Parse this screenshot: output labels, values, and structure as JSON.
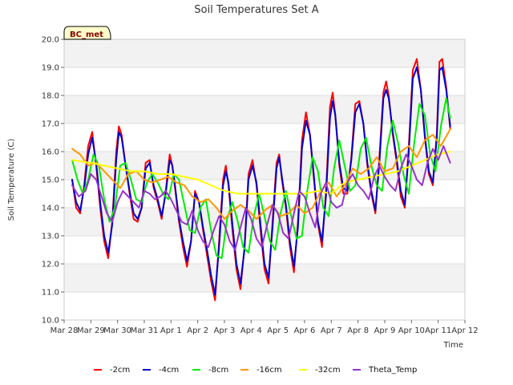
{
  "chart_data": {
    "type": "line",
    "title": "Soil Temperatures Set A",
    "xlabel": "Time",
    "ylabel": "Soil Temperature (C)",
    "badge": "BC_met",
    "ylim": [
      10.0,
      20.0
    ],
    "yticks": [
      "10.0",
      "11.0",
      "12.0",
      "13.0",
      "14.0",
      "15.0",
      "16.0",
      "17.0",
      "18.0",
      "19.0",
      "20.0"
    ],
    "xlim": [
      0,
      15
    ],
    "xticks": [
      "Mar 28",
      "Mar 29",
      "Mar 30",
      "Mar 31",
      "Apr 1",
      "Apr 2",
      "Apr 3",
      "Apr 4",
      "Apr 5",
      "Apr 6",
      "Apr 7",
      "Apr 8",
      "Apr 9",
      "Apr 10",
      "Apr 11",
      "Apr 12"
    ],
    "background_bands": true,
    "legend_position": "bottom",
    "series": [
      {
        "name": "-2cm",
        "color": "#ff0000",
        "x": [
          0.3,
          0.45,
          0.6,
          0.75,
          0.9,
          1.05,
          1.2,
          1.35,
          1.5,
          1.65,
          1.8,
          1.95,
          2.05,
          2.15,
          2.3,
          2.45,
          2.6,
          2.75,
          2.9,
          3.05,
          3.2,
          3.35,
          3.5,
          3.65,
          3.8,
          3.95,
          4.05,
          4.15,
          4.3,
          4.45,
          4.6,
          4.75,
          4.9,
          5.05,
          5.2,
          5.35,
          5.5,
          5.65,
          5.8,
          5.95,
          6.05,
          6.15,
          6.3,
          6.45,
          6.6,
          6.75,
          6.9,
          7.05,
          7.2,
          7.35,
          7.5,
          7.65,
          7.8,
          7.95,
          8.05,
          8.15,
          8.3,
          8.45,
          8.6,
          8.75,
          8.9,
          9.05,
          9.2,
          9.35,
          9.5,
          9.65,
          9.8,
          9.95,
          10.05,
          10.15,
          10.3,
          10.45,
          10.6,
          10.75,
          10.9,
          11.05,
          11.2,
          11.35,
          11.5,
          11.65,
          11.8,
          11.95,
          12.05,
          12.15,
          12.3,
          12.45,
          12.6,
          12.75,
          12.9,
          13.05,
          13.2,
          13.35,
          13.5,
          13.65,
          13.8,
          13.95,
          14.05,
          14.15,
          14.3,
          14.45
        ],
        "y": [
          15.0,
          14.0,
          13.8,
          14.8,
          16.2,
          16.7,
          15.5,
          14.0,
          12.8,
          12.2,
          13.5,
          16.0,
          16.9,
          16.6,
          15.5,
          14.5,
          13.6,
          13.5,
          14.0,
          15.6,
          15.7,
          14.7,
          14.2,
          13.6,
          14.6,
          15.9,
          15.5,
          14.7,
          13.5,
          12.6,
          11.9,
          12.8,
          14.6,
          14.2,
          13.2,
          12.3,
          11.4,
          10.7,
          12.8,
          15.0,
          15.5,
          14.8,
          13.2,
          11.8,
          11.1,
          12.6,
          15.2,
          15.7,
          14.8,
          13.2,
          11.8,
          11.3,
          13.5,
          15.6,
          15.9,
          15.0,
          14.0,
          12.6,
          11.7,
          13.5,
          16.4,
          17.4,
          16.6,
          15.0,
          13.4,
          12.6,
          14.6,
          17.6,
          18.1,
          17.3,
          15.5,
          14.5,
          14.5,
          15.8,
          17.7,
          17.8,
          17.0,
          15.5,
          14.5,
          13.8,
          15.8,
          18.1,
          18.5,
          18.0,
          16.6,
          15.6,
          14.4,
          14.0,
          16.2,
          18.9,
          19.3,
          18.2,
          16.5,
          15.2,
          14.8,
          16.7,
          19.2,
          19.3,
          18.3,
          16.8
        ]
      },
      {
        "name": "-4cm",
        "color": "#0000cc",
        "x": [
          0.3,
          0.45,
          0.6,
          0.75,
          0.9,
          1.05,
          1.2,
          1.35,
          1.5,
          1.65,
          1.8,
          1.95,
          2.05,
          2.15,
          2.3,
          2.45,
          2.6,
          2.75,
          2.9,
          3.05,
          3.2,
          3.35,
          3.5,
          3.65,
          3.8,
          3.95,
          4.05,
          4.15,
          4.3,
          4.45,
          4.6,
          4.75,
          4.9,
          5.05,
          5.2,
          5.35,
          5.5,
          5.65,
          5.8,
          5.95,
          6.05,
          6.15,
          6.3,
          6.45,
          6.6,
          6.75,
          6.9,
          7.05,
          7.2,
          7.35,
          7.5,
          7.65,
          7.8,
          7.95,
          8.05,
          8.15,
          8.3,
          8.45,
          8.6,
          8.75,
          8.9,
          9.05,
          9.2,
          9.35,
          9.5,
          9.65,
          9.8,
          9.95,
          10.05,
          10.15,
          10.3,
          10.45,
          10.6,
          10.75,
          10.9,
          11.05,
          11.2,
          11.35,
          11.5,
          11.65,
          11.8,
          11.95,
          12.05,
          12.15,
          12.3,
          12.45,
          12.6,
          12.75,
          12.9,
          13.05,
          13.2,
          13.35,
          13.5,
          13.65,
          13.8,
          13.95,
          14.05,
          14.15,
          14.3,
          14.45
        ],
        "y": [
          15.0,
          14.2,
          13.9,
          14.7,
          15.9,
          16.5,
          15.6,
          14.2,
          13.0,
          12.4,
          13.4,
          15.7,
          16.7,
          16.5,
          15.5,
          14.6,
          13.8,
          13.6,
          14.0,
          15.4,
          15.6,
          14.8,
          14.3,
          13.7,
          14.5,
          15.7,
          15.5,
          14.8,
          13.6,
          12.8,
          12.1,
          12.8,
          14.5,
          14.2,
          13.3,
          12.5,
          11.6,
          10.9,
          12.6,
          14.8,
          15.3,
          14.9,
          13.4,
          12.0,
          11.3,
          12.5,
          15.0,
          15.5,
          14.9,
          13.4,
          12.0,
          11.5,
          13.3,
          15.4,
          15.8,
          15.1,
          14.1,
          12.8,
          11.9,
          13.3,
          16.1,
          17.1,
          16.6,
          15.1,
          13.5,
          12.8,
          14.4,
          17.2,
          17.8,
          17.3,
          15.6,
          14.7,
          14.6,
          15.7,
          17.4,
          17.7,
          17.0,
          15.6,
          14.6,
          13.9,
          15.6,
          17.9,
          18.2,
          17.9,
          16.7,
          15.7,
          14.6,
          14.1,
          16.0,
          18.6,
          19.0,
          18.2,
          16.6,
          15.3,
          14.9,
          16.5,
          18.9,
          19.0,
          18.2,
          16.9
        ]
      },
      {
        "name": "-8cm",
        "color": "#00ee00",
        "x": [
          0.3,
          0.5,
          0.7,
          0.9,
          1.1,
          1.3,
          1.5,
          1.7,
          1.9,
          2.1,
          2.3,
          2.5,
          2.7,
          2.9,
          3.1,
          3.3,
          3.5,
          3.7,
          3.9,
          4.1,
          4.3,
          4.5,
          4.7,
          4.9,
          5.1,
          5.3,
          5.5,
          5.7,
          5.9,
          6.1,
          6.3,
          6.5,
          6.7,
          6.9,
          7.1,
          7.3,
          7.5,
          7.7,
          7.9,
          8.1,
          8.3,
          8.5,
          8.7,
          8.9,
          9.1,
          9.3,
          9.5,
          9.7,
          9.9,
          10.1,
          10.3,
          10.5,
          10.7,
          10.9,
          11.1,
          11.3,
          11.5,
          11.7,
          11.9,
          12.1,
          12.3,
          12.5,
          12.7,
          12.9,
          13.1,
          13.3,
          13.5,
          13.7,
          13.9,
          14.1,
          14.3,
          14.45
        ],
        "y": [
          15.7,
          15.0,
          14.5,
          15.0,
          15.9,
          15.5,
          14.3,
          13.5,
          14.0,
          15.5,
          15.6,
          15.0,
          14.3,
          14.2,
          14.9,
          15.2,
          14.9,
          14.5,
          14.3,
          15.2,
          15.0,
          14.1,
          13.2,
          13.1,
          14.0,
          14.3,
          13.2,
          12.3,
          12.2,
          13.6,
          14.2,
          13.5,
          12.6,
          12.4,
          13.7,
          14.5,
          13.7,
          12.8,
          12.5,
          13.8,
          14.6,
          13.7,
          12.9,
          13.0,
          14.6,
          15.8,
          15.3,
          14.0,
          13.7,
          15.4,
          16.4,
          15.5,
          14.6,
          14.8,
          16.1,
          16.5,
          15.5,
          14.8,
          14.6,
          16.2,
          17.1,
          16.3,
          15.2,
          14.5,
          16.3,
          17.7,
          17.3,
          15.9,
          15.3,
          16.9,
          17.9,
          17.2
        ]
      },
      {
        "name": "-16cm",
        "color": "#ff9900",
        "x": [
          0.3,
          0.6,
          0.9,
          1.2,
          1.5,
          1.8,
          2.1,
          2.4,
          2.7,
          3.0,
          3.3,
          3.6,
          3.9,
          4.2,
          4.5,
          4.8,
          5.1,
          5.4,
          5.7,
          6.0,
          6.3,
          6.6,
          6.9,
          7.2,
          7.5,
          7.8,
          8.1,
          8.4,
          8.7,
          9.0,
          9.3,
          9.6,
          9.9,
          10.2,
          10.5,
          10.8,
          11.1,
          11.4,
          11.7,
          12.0,
          12.3,
          12.6,
          12.9,
          13.2,
          13.5,
          13.8,
          14.1,
          14.45
        ],
        "y": [
          16.1,
          15.9,
          15.5,
          15.6,
          15.3,
          15.0,
          14.7,
          15.2,
          15.3,
          15.0,
          14.9,
          15.0,
          15.1,
          14.9,
          14.8,
          14.4,
          14.2,
          14.3,
          14.0,
          13.6,
          13.9,
          14.1,
          13.9,
          13.6,
          13.9,
          14.1,
          13.7,
          13.8,
          14.1,
          13.8,
          14.0,
          14.6,
          14.9,
          14.4,
          14.8,
          15.4,
          15.2,
          15.4,
          15.8,
          15.3,
          15.4,
          16.0,
          16.2,
          15.8,
          16.4,
          16.6,
          16.2,
          16.8
        ]
      },
      {
        "name": "-32cm",
        "color": "#ffff00",
        "x": [
          0.3,
          1.0,
          1.5,
          2.0,
          2.5,
          3.0,
          3.5,
          4.0,
          4.5,
          5.0,
          5.5,
          6.0,
          6.5,
          7.0,
          7.5,
          8.0,
          8.5,
          9.0,
          9.5,
          10.0,
          10.5,
          11.0,
          11.5,
          12.0,
          12.5,
          13.0,
          13.5,
          14.0,
          14.45
        ],
        "y": [
          15.7,
          15.6,
          15.5,
          15.4,
          15.3,
          15.3,
          15.2,
          15.2,
          15.1,
          15.0,
          14.8,
          14.6,
          14.5,
          14.5,
          14.5,
          14.5,
          14.5,
          14.5,
          14.6,
          14.5,
          14.9,
          15.0,
          15.1,
          15.2,
          15.3,
          15.5,
          15.7,
          15.9,
          16.0
        ]
      },
      {
        "name": "Theta_Temp",
        "color": "#9933cc",
        "x": [
          0.3,
          0.55,
          0.8,
          1.0,
          1.2,
          1.4,
          1.6,
          1.8,
          2.0,
          2.2,
          2.4,
          2.6,
          2.8,
          3.0,
          3.2,
          3.4,
          3.6,
          3.8,
          4.0,
          4.2,
          4.4,
          4.6,
          4.8,
          5.0,
          5.2,
          5.4,
          5.6,
          5.8,
          6.0,
          6.2,
          6.4,
          6.6,
          6.8,
          7.0,
          7.2,
          7.4,
          7.6,
          7.8,
          8.0,
          8.2,
          8.4,
          8.6,
          8.8,
          9.0,
          9.2,
          9.4,
          9.6,
          9.8,
          10.0,
          10.2,
          10.4,
          10.6,
          10.8,
          11.0,
          11.2,
          11.4,
          11.6,
          11.8,
          12.0,
          12.2,
          12.4,
          12.6,
          12.8,
          13.0,
          13.2,
          13.4,
          13.6,
          13.8,
          14.0,
          14.2,
          14.45
        ],
        "y": [
          14.8,
          14.4,
          14.6,
          15.2,
          15.0,
          14.4,
          13.8,
          13.5,
          14.2,
          14.6,
          14.4,
          14.2,
          14.0,
          14.6,
          14.5,
          14.3,
          14.4,
          14.6,
          14.3,
          13.9,
          13.5,
          13.4,
          13.9,
          13.2,
          12.8,
          12.6,
          13.2,
          13.7,
          13.4,
          12.8,
          12.5,
          13.3,
          14.0,
          13.6,
          12.9,
          12.6,
          13.4,
          14.1,
          13.8,
          13.1,
          12.9,
          13.8,
          14.6,
          14.4,
          13.8,
          13.3,
          14.5,
          14.9,
          14.2,
          14.0,
          14.1,
          14.9,
          15.2,
          14.8,
          14.6,
          14.3,
          15.1,
          15.5,
          15.1,
          14.8,
          14.6,
          15.4,
          15.9,
          15.5,
          15.0,
          14.8,
          15.6,
          16.1,
          15.7,
          16.2,
          15.6
        ]
      }
    ]
  }
}
